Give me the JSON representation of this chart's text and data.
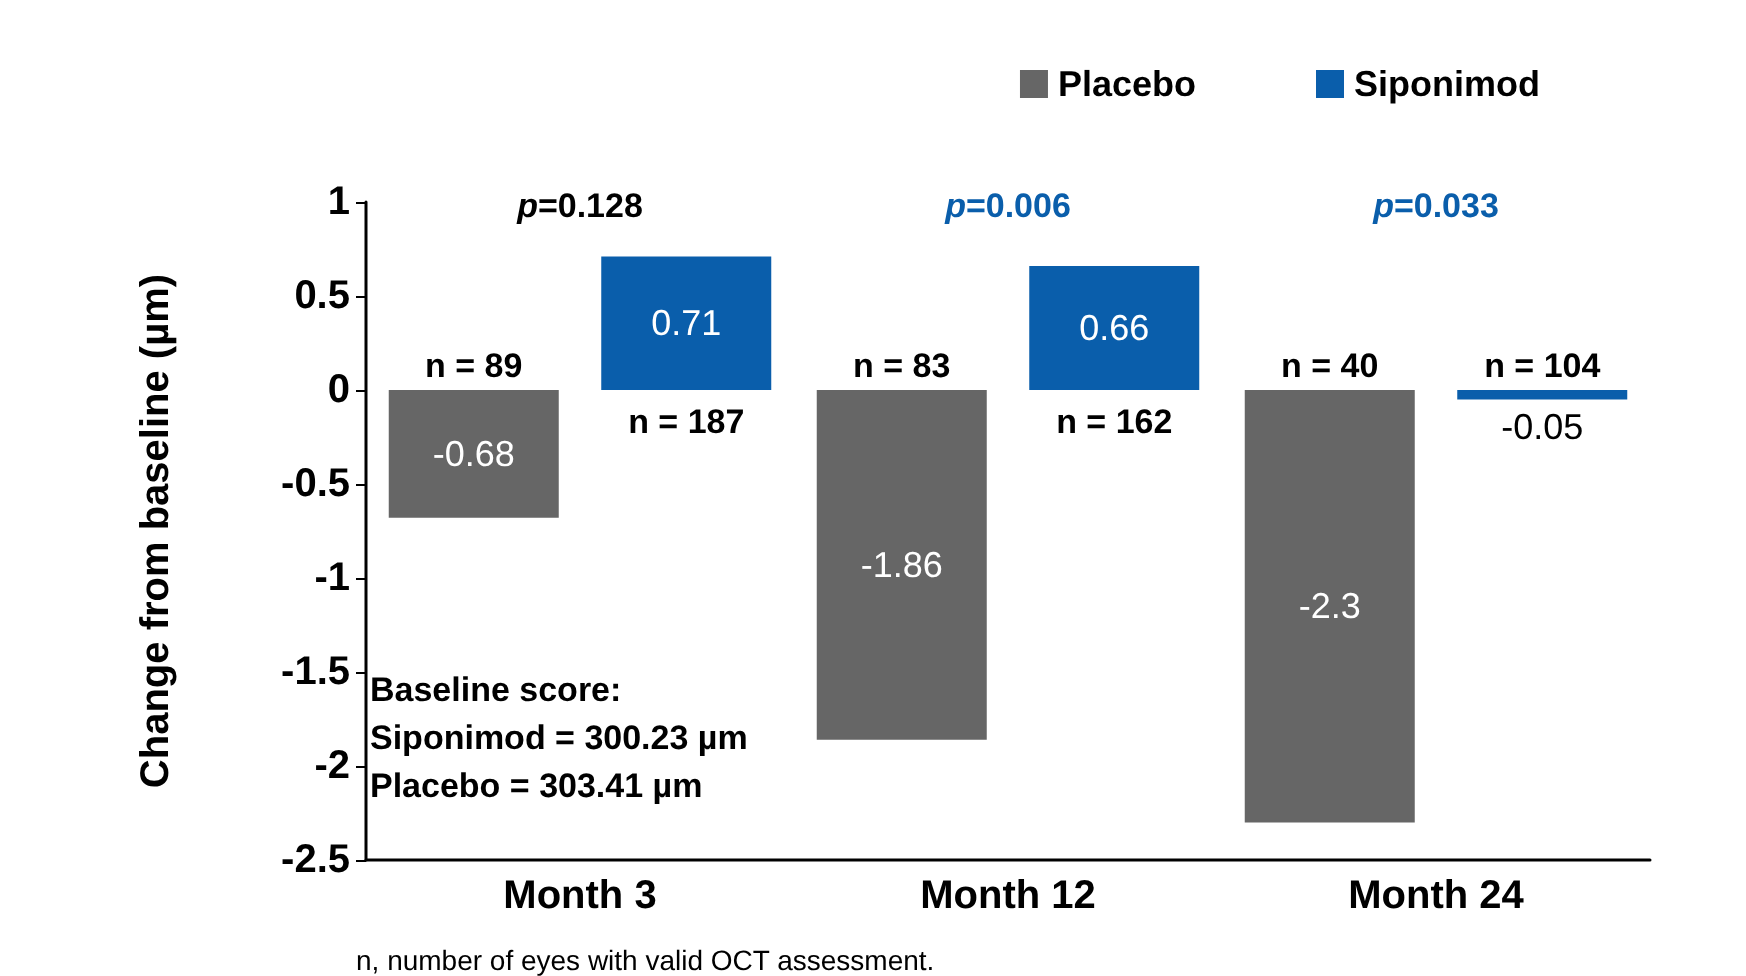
{
  "chart_data": {
    "type": "bar",
    "ylabel": "Change from baseline (µm)",
    "categories": [
      "Month 3",
      "Month 12",
      "Month 24"
    ],
    "series": [
      {
        "name": "Placebo",
        "color": "#666666",
        "values": [
          -0.68,
          -1.86,
          -2.3
        ]
      },
      {
        "name": "Siponimod",
        "color": "#0a5eab",
        "values": [
          0.71,
          0.66,
          -0.05
        ]
      }
    ],
    "data_labels": true,
    "ylim": [
      -2.5,
      1
    ],
    "yticks": [
      -2.5,
      -2,
      -1.5,
      -1,
      -0.5,
      0,
      0.5,
      1
    ],
    "grid": false,
    "legend": "top right",
    "annotations": [
      "p=0.128",
      "p=0.006",
      "p=0.033",
      "n = 89",
      "n = 187",
      "n = 83",
      "n = 162",
      "n = 40",
      "n = 104",
      "Baseline score:\nSiponimod = 300.23 µm\nPlacebo = 303.41 µm",
      "n, number of eyes with valid OCT assessment."
    ]
  }
}
